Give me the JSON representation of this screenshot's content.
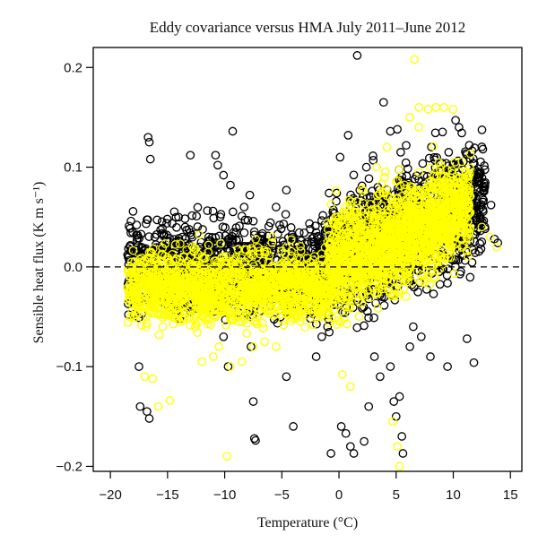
{
  "chart_data": {
    "type": "scatter",
    "title": "Eddy covariance versus HMA July 2011–June 2012",
    "xlabel": "Temperature (°C)",
    "ylabel": "Sensible heat flux (K m s⁻¹)",
    "xlim": [
      -21.5,
      16
    ],
    "ylim": [
      -0.205,
      0.22
    ],
    "x_ticks": [
      "−20",
      "−15",
      "−10",
      "−5",
      "0",
      "5",
      "10",
      "15"
    ],
    "y_ticks": [
      "−0.2",
      "−0.1",
      "0.0",
      "0.1",
      "0.2"
    ],
    "x_tick_values": [
      -20,
      -15,
      -10,
      -5,
      0,
      5,
      10,
      15
    ],
    "y_tick_values": [
      -0.2,
      -0.1,
      0.0,
      0.1,
      0.2
    ],
    "reference_line": {
      "y": 0,
      "style": "dashed",
      "color": "#000000"
    },
    "grid": false,
    "legend": "none",
    "series": [
      {
        "color": "#000000",
        "marker": "open-circle",
        "points": [
          [
            -18.2,
            0.046
          ],
          [
            -17.7,
            0.042
          ],
          [
            -16.7,
            0.13
          ],
          [
            -16.6,
            0.125
          ],
          [
            -16.5,
            0.108
          ],
          [
            -17.5,
            -0.1
          ],
          [
            -17.4,
            -0.14
          ],
          [
            -16.8,
            -0.145
          ],
          [
            -16.6,
            -0.152
          ],
          [
            -13.0,
            0.112
          ],
          [
            -12.2,
            0.02
          ],
          [
            -11.4,
            0.03
          ],
          [
            -10.8,
            0.112
          ],
          [
            -10.6,
            0.102
          ],
          [
            -10.1,
            0.092
          ],
          [
            -9.5,
            0.082
          ],
          [
            -9.3,
            0.136
          ],
          [
            -8.5,
            0.051
          ],
          [
            -8.3,
            0.06
          ],
          [
            -7.8,
            0.072
          ],
          [
            -7.4,
            0.032
          ],
          [
            -7.0,
            0.024
          ],
          [
            -6.5,
            0.02
          ],
          [
            -5.5,
            0.06
          ],
          [
            -5.2,
            0.042
          ],
          [
            -4.6,
            0.077
          ],
          [
            -4.0,
            0.03
          ],
          [
            -3.2,
            0.015
          ],
          [
            -2.2,
            0.03
          ],
          [
            -1.5,
            0.025
          ],
          [
            -0.2,
            0.074
          ],
          [
            0.1,
            0.11
          ],
          [
            0.8,
            0.132
          ],
          [
            1.0,
            0.058
          ],
          [
            1.6,
            0.212
          ],
          [
            2.4,
            0.1
          ],
          [
            3.0,
            0.107
          ],
          [
            3.5,
            0.077
          ],
          [
            3.9,
            0.165
          ],
          [
            4.5,
            0.136
          ],
          [
            5.1,
            0.138
          ],
          [
            5.4,
            0.115
          ],
          [
            8.6,
            0.092
          ],
          [
            9.0,
            0.104
          ],
          [
            9.6,
            0.115
          ],
          [
            10.2,
            0.147
          ],
          [
            10.5,
            0.14
          ],
          [
            11.4,
            0.122
          ],
          [
            12.2,
            0.09
          ],
          [
            12.6,
            0.065
          ],
          [
            13.3,
            0.062
          ],
          [
            13.6,
            0.028
          ],
          [
            13.9,
            0.024
          ],
          [
            -10.1,
            -0.07
          ],
          [
            -9.7,
            -0.1
          ],
          [
            -7.7,
            -0.08
          ],
          [
            -7.5,
            -0.135
          ],
          [
            -7.4,
            -0.172
          ],
          [
            -7.3,
            -0.174
          ],
          [
            -4.6,
            -0.11
          ],
          [
            -4.0,
            -0.16
          ],
          [
            -2.0,
            -0.09
          ],
          [
            -1.5,
            -0.07
          ],
          [
            -1.0,
            -0.06
          ],
          [
            -0.7,
            -0.187
          ],
          [
            0.2,
            -0.16
          ],
          [
            0.6,
            -0.167
          ],
          [
            1.0,
            -0.18
          ],
          [
            1.3,
            -0.187
          ],
          [
            1.5,
            -0.214
          ],
          [
            2.2,
            -0.175
          ],
          [
            2.6,
            -0.14
          ],
          [
            3.1,
            -0.09
          ],
          [
            3.6,
            -0.11
          ],
          [
            4.5,
            -0.1
          ],
          [
            4.8,
            -0.135
          ],
          [
            5.0,
            -0.15
          ],
          [
            5.3,
            -0.13
          ],
          [
            5.5,
            -0.17
          ],
          [
            5.6,
            -0.187
          ],
          [
            5.8,
            -0.214
          ],
          [
            6.2,
            -0.08
          ],
          [
            6.5,
            -0.06
          ],
          [
            7.2,
            -0.07
          ],
          [
            8.0,
            -0.09
          ],
          [
            9.5,
            -0.1
          ],
          [
            11.2,
            -0.072
          ],
          [
            11.8,
            -0.096
          ]
        ]
      },
      {
        "color": "#ffff00",
        "marker": "open-circle",
        "points": [
          [
            6.6,
            0.208
          ],
          [
            7.0,
            0.16
          ],
          [
            7.8,
            0.158
          ],
          [
            8.5,
            0.16
          ],
          [
            9.2,
            0.16
          ],
          [
            10.0,
            0.158
          ],
          [
            6.2,
            0.15
          ],
          [
            7.0,
            0.14
          ],
          [
            -17.0,
            -0.11
          ],
          [
            -16.3,
            -0.112
          ],
          [
            -15.8,
            -0.14
          ],
          [
            -14.8,
            -0.134
          ],
          [
            -9.8,
            -0.19
          ],
          [
            -9.5,
            -0.1
          ],
          [
            -8.5,
            -0.095
          ],
          [
            -7.5,
            -0.08
          ],
          [
            -6.5,
            -0.075
          ],
          [
            -5.5,
            -0.08
          ],
          [
            0.3,
            -0.108
          ],
          [
            1.0,
            -0.12
          ],
          [
            4.7,
            -0.155
          ],
          [
            5.3,
            -0.2
          ],
          [
            5.6,
            -0.212
          ],
          [
            5.1,
            -0.18
          ],
          [
            -12.0,
            -0.095
          ],
          [
            -11.0,
            -0.09
          ],
          [
            -10.5,
            -0.08
          ],
          [
            1.0,
            0.062
          ],
          [
            2.0,
            0.078
          ],
          [
            3.3,
            0.1
          ],
          [
            4.2,
            0.12
          ],
          [
            12.5,
            0.04
          ],
          [
            13.2,
            0.03
          ],
          [
            13.8,
            0.02
          ]
        ]
      }
    ],
    "dense_bands": [
      {
        "series": 0,
        "x_range": [
          -18.5,
          -1.0
        ],
        "y_center": 0.0,
        "y_spread": 0.045,
        "count": 1000
      },
      {
        "series": 0,
        "x_range": [
          -1.0,
          12.8
        ],
        "y_center_start": 0.005,
        "y_center_end": 0.07,
        "y_spread": 0.06,
        "count": 1000
      },
      {
        "series": 1,
        "x_range": [
          -18.5,
          -1.0
        ],
        "y_center": -0.02,
        "y_spread": 0.035,
        "count": 1400
      },
      {
        "series": 1,
        "x_range": [
          -1.0,
          11.5
        ],
        "y_center_start": 0.0,
        "y_center_end": 0.06,
        "y_spread": 0.05,
        "count": 1600
      }
    ]
  }
}
